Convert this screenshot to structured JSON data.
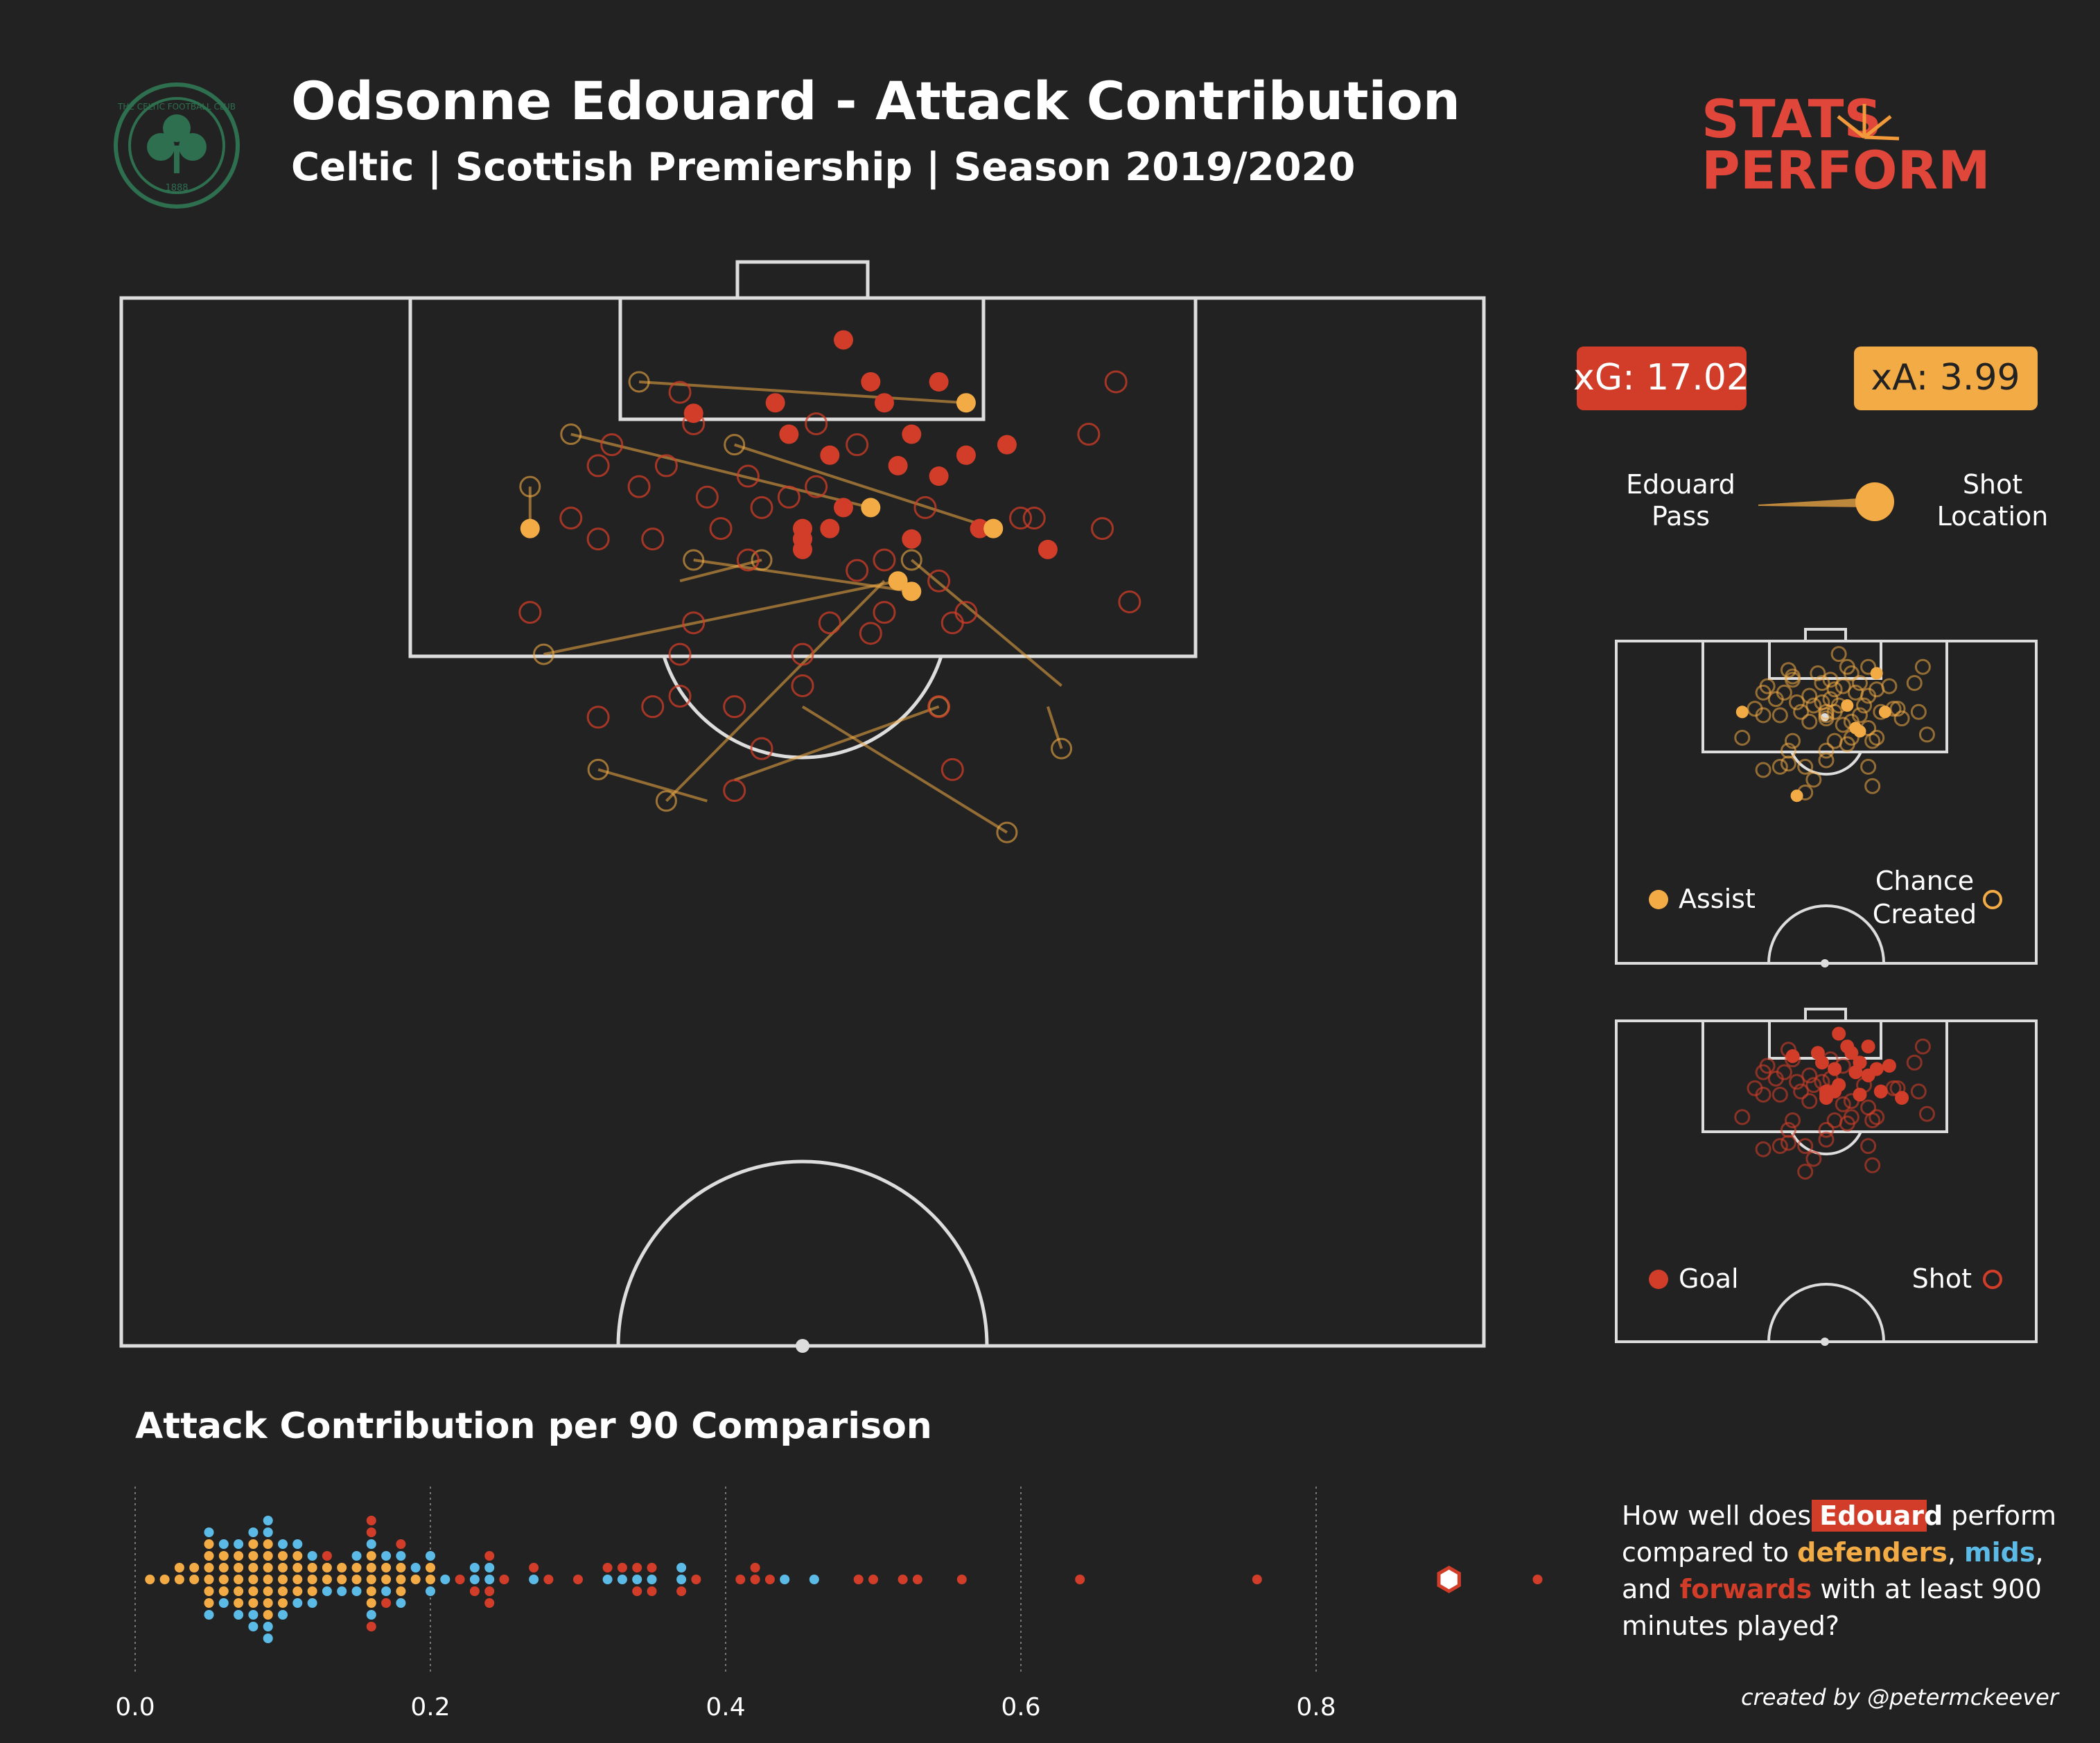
{
  "header": {
    "title": "Odsonne Edouard - Attack Contribution",
    "subtitle": "Celtic | Scottish Premiership | Season 2019/2020",
    "logo_top_text": "THE CELTIC FOOTBALL CLUB",
    "logo_year": "1888",
    "brand_line1": "STATS",
    "brand_line2": "PERFORM"
  },
  "colors": {
    "background": "#222222",
    "lines": "#dddddd",
    "goal_red": "#d13d28",
    "assist_orange": "#f2ab45",
    "mid_blue": "#5bbbe6",
    "celtic_green": "#2e6f4f"
  },
  "metrics": {
    "xg_label": "xG: 17.02",
    "xa_label": "xA: 3.99"
  },
  "legend": {
    "pass_label_1": "Edouard",
    "pass_label_2": "Pass",
    "shot_label_1": "Shot",
    "shot_label_2": "Location",
    "assist": "Assist",
    "chance_1": "Chance",
    "chance_2": "Created",
    "goal": "Goal",
    "shot": "Shot"
  },
  "comparison": {
    "title": "Attack Contribution per 90 Comparison",
    "question_parts": [
      "How well does ",
      "Edouard",
      " perform",
      "compared to ",
      "defenders",
      ", ",
      "mids",
      ",",
      "and ",
      "forwards",
      " with at least 900",
      " minutes played?"
    ],
    "credit": "created by @petermckeever"
  },
  "chart_data": [
    {
      "type": "scatter",
      "name": "pitch-main",
      "description_free": true,
      "goals": [
        [
          0.6,
          0.92
        ],
        [
          0.55,
          0.92
        ],
        [
          0.53,
          0.96
        ],
        [
          0.56,
          0.9
        ],
        [
          0.6,
          0.83
        ],
        [
          0.58,
          0.87
        ],
        [
          0.52,
          0.85
        ],
        [
          0.65,
          0.86
        ],
        [
          0.57,
          0.84
        ],
        [
          0.53,
          0.8
        ],
        [
          0.52,
          0.78
        ],
        [
          0.5,
          0.77
        ],
        [
          0.58,
          0.77
        ],
        [
          0.63,
          0.78
        ],
        [
          0.68,
          0.76
        ],
        [
          0.48,
          0.9
        ],
        [
          0.49,
          0.87
        ],
        [
          0.5,
          0.76
        ],
        [
          0.42,
          0.89
        ],
        [
          0.5,
          0.78
        ],
        [
          0.62,
          0.85
        ]
      ],
      "shots_missed": [
        [
          0.41,
          0.91
        ],
        [
          0.42,
          0.88
        ],
        [
          0.36,
          0.86
        ],
        [
          0.38,
          0.82
        ],
        [
          0.43,
          0.81
        ],
        [
          0.51,
          0.82
        ],
        [
          0.47,
          0.8
        ],
        [
          0.39,
          0.77
        ],
        [
          0.46,
          0.75
        ],
        [
          0.56,
          0.75
        ],
        [
          0.54,
          0.74
        ],
        [
          0.62,
          0.7
        ],
        [
          0.66,
          0.79
        ],
        [
          0.71,
          0.87
        ],
        [
          0.73,
          0.92
        ],
        [
          0.67,
          0.79
        ],
        [
          0.72,
          0.78
        ],
        [
          0.74,
          0.71
        ],
        [
          0.56,
          0.7
        ],
        [
          0.3,
          0.7
        ],
        [
          0.33,
          0.79
        ],
        [
          0.42,
          0.69
        ],
        [
          0.41,
          0.66
        ],
        [
          0.39,
          0.61
        ],
        [
          0.45,
          0.61
        ],
        [
          0.5,
          0.66
        ],
        [
          0.6,
          0.73
        ],
        [
          0.61,
          0.69
        ],
        [
          0.61,
          0.55
        ],
        [
          0.45,
          0.53
        ],
        [
          0.35,
          0.6
        ],
        [
          0.55,
          0.68
        ],
        [
          0.59,
          0.8
        ],
        [
          0.46,
          0.83
        ],
        [
          0.35,
          0.84
        ],
        [
          0.4,
          0.84
        ],
        [
          0.51,
          0.88
        ],
        [
          0.54,
          0.86
        ],
        [
          0.49,
          0.81
        ],
        [
          0.44,
          0.78
        ],
        [
          0.35,
          0.77
        ],
        [
          0.52,
          0.69
        ],
        [
          0.41,
          0.62
        ],
        [
          0.5,
          0.63
        ],
        [
          0.47,
          0.57
        ],
        [
          0.6,
          0.61
        ]
      ],
      "passes_from": [
        [
          0.3,
          0.82
        ],
        [
          0.38,
          0.92
        ],
        [
          0.45,
          0.86
        ],
        [
          0.33,
          0.87
        ],
        [
          0.31,
          0.66
        ],
        [
          0.42,
          0.75
        ],
        [
          0.35,
          0.55
        ],
        [
          0.47,
          0.75
        ],
        [
          0.69,
          0.57
        ],
        [
          0.58,
          0.75
        ],
        [
          0.6,
          0.61
        ],
        [
          0.4,
          0.52
        ],
        [
          0.65,
          0.49
        ]
      ],
      "passes_to": [
        [
          0.3,
          0.78
        ],
        [
          0.62,
          0.9
        ],
        [
          0.64,
          0.78
        ],
        [
          0.55,
          0.8
        ],
        [
          0.57,
          0.73
        ],
        [
          0.58,
          0.72
        ],
        [
          0.43,
          0.52
        ],
        [
          0.41,
          0.73
        ],
        [
          0.68,
          0.61
        ],
        [
          0.69,
          0.63
        ],
        [
          0.45,
          0.54
        ],
        [
          0.56,
          0.73
        ],
        [
          0.5,
          0.61
        ]
      ],
      "center_line_y": 0.0
    },
    {
      "type": "scatter",
      "name": "beeswarm-comparison",
      "x_axis": {
        "ticks": [
          "0.0",
          "0.2",
          "0.4",
          "0.6",
          "0.8"
        ],
        "range": [
          0.0,
          0.95
        ]
      },
      "series": [
        {
          "name": "defenders",
          "color": "#f2ab45",
          "values": [
            0.01,
            0.02,
            0.03,
            0.03,
            0.04,
            0.04,
            0.05,
            0.05,
            0.05,
            0.05,
            0.05,
            0.05,
            0.06,
            0.06,
            0.06,
            0.06,
            0.07,
            0.07,
            0.07,
            0.07,
            0.07,
            0.08,
            0.08,
            0.08,
            0.08,
            0.08,
            0.08,
            0.09,
            0.09,
            0.09,
            0.09,
            0.09,
            0.09,
            0.09,
            0.1,
            0.1,
            0.1,
            0.1,
            0.1,
            0.11,
            0.11,
            0.11,
            0.11,
            0.12,
            0.12,
            0.12,
            0.13,
            0.13,
            0.14,
            0.14,
            0.15,
            0.15,
            0.16,
            0.16,
            0.16,
            0.16,
            0.16,
            0.17,
            0.17,
            0.18,
            0.18,
            0.18,
            0.19,
            0.2,
            0.2
          ]
        },
        {
          "name": "mids",
          "color": "#5bbbe6",
          "values": [
            0.05,
            0.05,
            0.06,
            0.06,
            0.07,
            0.07,
            0.08,
            0.08,
            0.08,
            0.09,
            0.09,
            0.09,
            0.09,
            0.1,
            0.1,
            0.11,
            0.11,
            0.12,
            0.12,
            0.13,
            0.14,
            0.15,
            0.15,
            0.16,
            0.16,
            0.17,
            0.17,
            0.18,
            0.18,
            0.19,
            0.2,
            0.2,
            0.21,
            0.23,
            0.23,
            0.24,
            0.24,
            0.27,
            0.32,
            0.33,
            0.34,
            0.35,
            0.37,
            0.37,
            0.44,
            0.46
          ]
        },
        {
          "name": "forwards",
          "color": "#d13d28",
          "values": [
            0.13,
            0.16,
            0.16,
            0.16,
            0.17,
            0.18,
            0.22,
            0.23,
            0.24,
            0.24,
            0.24,
            0.25,
            0.27,
            0.28,
            0.3,
            0.32,
            0.33,
            0.34,
            0.34,
            0.35,
            0.35,
            0.37,
            0.38,
            0.41,
            0.42,
            0.42,
            0.43,
            0.49,
            0.5,
            0.52,
            0.53,
            0.56,
            0.64,
            0.76,
            0.95
          ]
        },
        {
          "name": "Edouard",
          "color": "#d13d28",
          "values": [
            0.89
          ]
        }
      ]
    }
  ]
}
